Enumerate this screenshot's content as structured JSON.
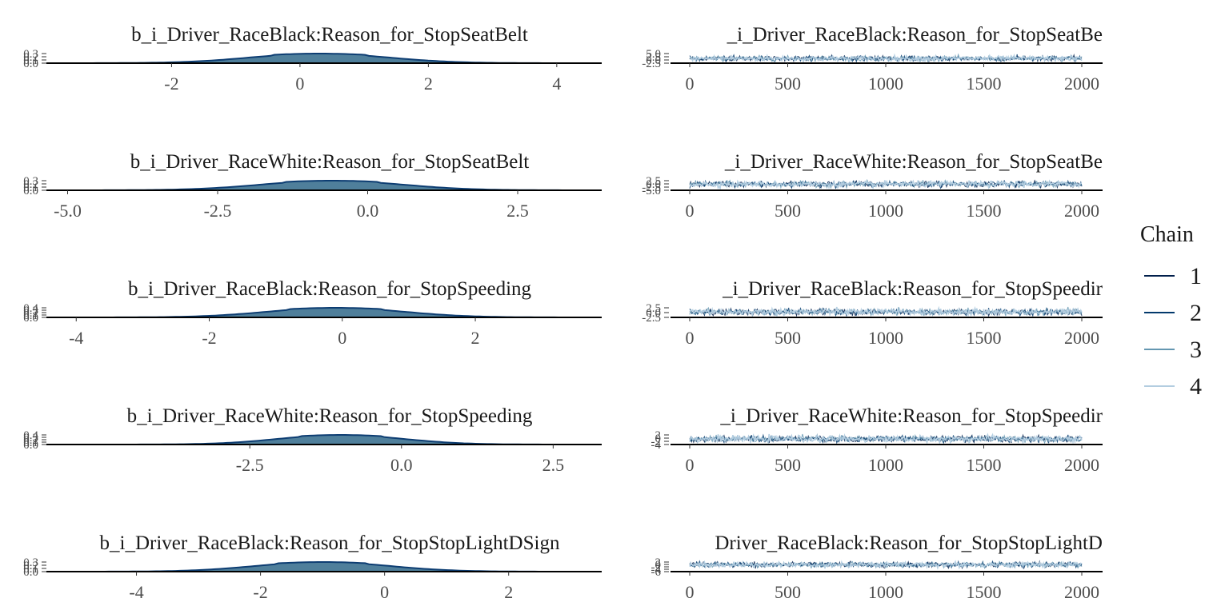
{
  "chart_data": {
    "type": "mcmc_dens_trace",
    "legend": {
      "title": "Chain",
      "placement": "right",
      "entries": [
        "1",
        "2",
        "3",
        "4"
      ],
      "colors": [
        "#011f4b",
        "#03396c",
        "#6497b1",
        "#b3cde0"
      ]
    },
    "density_fill": "#4f7f9b",
    "density_line": "#0d3d72",
    "trace_x_ticks": [
      0,
      500,
      1000,
      1500,
      2000
    ],
    "rows": [
      {
        "dens_title": "b_i_Driver_RaceBlack:Reason_for_StopSeatBelt",
        "trace_title": "_i_Driver_RaceBlack:Reason_for_StopSeatBe",
        "dens_xlim": [
          -3.9,
          4.7
        ],
        "dens_ticks": [
          "-2",
          "0",
          "2",
          "4"
        ],
        "dens_tick_values": [
          -2,
          0,
          2,
          4
        ],
        "dens_yticks": [
          "0.0",
          "0.1",
          "0.2",
          "0.3"
        ],
        "dens_shape": {
          "mean": 0.3,
          "sd": 1.05
        },
        "trace_yticks": [
          "-2.5",
          "0.0",
          "2.5",
          "5.0"
        ],
        "trace_ylim": [
          -4,
          6
        ]
      },
      {
        "dens_title": "b_i_Driver_RaceWhite:Reason_for_StopSeatBelt",
        "trace_title": "_i_Driver_RaceWhite:Reason_for_StopSeatBe",
        "dens_xlim": [
          -5.3,
          3.9
        ],
        "dens_ticks": [
          "-5.0",
          "-2.5",
          "0.0",
          "2.5"
        ],
        "dens_tick_values": [
          -5,
          -2.5,
          0,
          2.5
        ],
        "dens_yticks": [
          "0.0",
          "0.1",
          "0.2",
          "0.3"
        ],
        "dens_shape": {
          "mean": -0.6,
          "sd": 1.15
        },
        "trace_yticks": [
          "-5.0",
          "-2.5",
          "0.0",
          "2.5"
        ],
        "trace_ylim": [
          -6,
          4
        ]
      },
      {
        "dens_title": "b_i_Driver_RaceBlack:Reason_for_StopSpeeding",
        "trace_title": "_i_Driver_RaceBlack:Reason_for_StopSpeedir",
        "dens_xlim": [
          -4.4,
          3.9
        ],
        "dens_ticks": [
          "-4",
          "-2",
          "0",
          "2"
        ],
        "dens_tick_values": [
          -4,
          -2,
          0,
          2
        ],
        "dens_yticks": [
          "0.0",
          "0.1",
          "0.2",
          "0.3",
          "0.4"
        ],
        "dens_shape": {
          "mean": -0.1,
          "sd": 1.0
        },
        "trace_yticks": [
          "-2.5",
          "0.0",
          "2.5"
        ],
        "trace_ylim": [
          -4,
          4
        ]
      },
      {
        "dens_title": "b_i_Driver_RaceWhite:Reason_for_StopSpeeding",
        "trace_title": "_i_Driver_RaceWhite:Reason_for_StopSpeedir",
        "dens_xlim": [
          -5.8,
          3.3
        ],
        "dens_ticks": [
          "-2.5",
          "0.0",
          "2.5"
        ],
        "dens_tick_values": [
          -2.5,
          0,
          2.5
        ],
        "dens_yticks": [
          "0.0",
          "0.1",
          "0.2",
          "0.3",
          "0.4"
        ],
        "dens_shape": {
          "mean": -1.0,
          "sd": 1.0
        },
        "trace_yticks": [
          "-4",
          "-2",
          "0",
          "2"
        ],
        "trace_ylim": [
          -5,
          3
        ]
      },
      {
        "dens_title": "b_i_Driver_RaceBlack:Reason_for_StopStopLightDSign",
        "trace_title": "Driver_RaceBlack:Reason_for_StopStopLightD",
        "dens_xlim": [
          -5.4,
          3.5
        ],
        "dens_ticks": [
          "-4",
          "-2",
          "0",
          "2"
        ],
        "dens_tick_values": [
          -4,
          -2,
          0,
          2
        ],
        "dens_yticks": [
          "0.0",
          "0.1",
          "0.2",
          "0.3"
        ],
        "dens_shape": {
          "mean": -1.0,
          "sd": 1.05
        },
        "trace_yticks": [
          "-6",
          "-4",
          "-2",
          "0",
          "2"
        ],
        "trace_ylim": [
          -7,
          3
        ]
      }
    ]
  }
}
